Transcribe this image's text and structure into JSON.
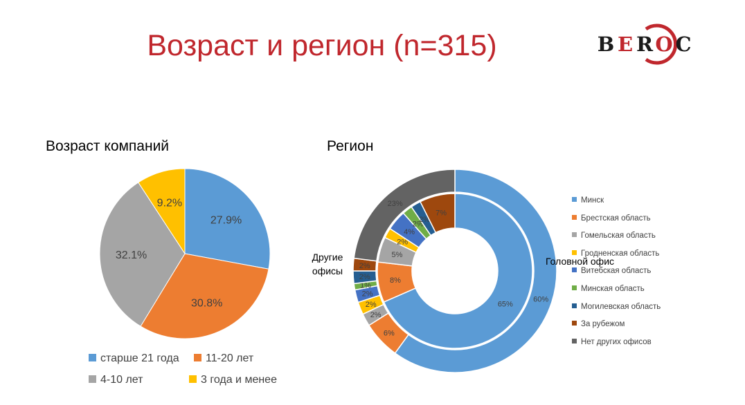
{
  "title": "Возраст и регион (n=315)",
  "logo": {
    "letters": [
      "B",
      "E",
      "R",
      "O",
      "C"
    ],
    "letter_colors": [
      "#1a1a1a",
      "#c0272d",
      "#1a1a1a",
      "#c0272d",
      "#1a1a1a"
    ],
    "ring_color": "#c0272d"
  },
  "chart_data": [
    {
      "type": "pie",
      "title": "Возраст компаний",
      "categories": [
        "старше 21 года",
        "11-20 лет",
        "4-10 лет",
        "3 года и менее"
      ],
      "values": [
        27.9,
        30.8,
        32.1,
        9.2
      ],
      "labels": [
        "27.9%",
        "30.8%",
        "32.1%",
        "9.2%"
      ],
      "colors": [
        "#5b9bd5",
        "#ed7d31",
        "#a5a5a5",
        "#ffc000"
      ],
      "legend": "bottom"
    },
    {
      "type": "pie",
      "subtype": "donut",
      "title": "Регион",
      "categories": [
        "Минск",
        "Брестская область",
        "Гомельская область",
        "Гродненская область",
        "Витебская область",
        "Минская область",
        "Могилевская область",
        "За рубежом",
        "Нет других офисов"
      ],
      "colors": [
        "#5b9bd5",
        "#ed7d31",
        "#a5a5a5",
        "#ffc000",
        "#4472c4",
        "#70ad47",
        "#255e91",
        "#9e480e",
        "#636363"
      ],
      "legend": "right",
      "series": [
        {
          "name": "Головной офис",
          "values": [
            65,
            8,
            5,
            2,
            4,
            2,
            2,
            7,
            0
          ],
          "labels": [
            "65%",
            "8%",
            "5%",
            "2%",
            "4%",
            "2%",
            "2%",
            "7%",
            ""
          ]
        },
        {
          "name": "Другие офисы",
          "values": [
            60,
            6,
            2,
            2,
            2,
            1,
            2,
            2,
            23
          ],
          "labels": [
            "60%",
            "6%",
            "2%",
            "2%",
            "2%",
            "1%",
            "2%",
            "2%",
            "23%"
          ]
        }
      ]
    }
  ]
}
